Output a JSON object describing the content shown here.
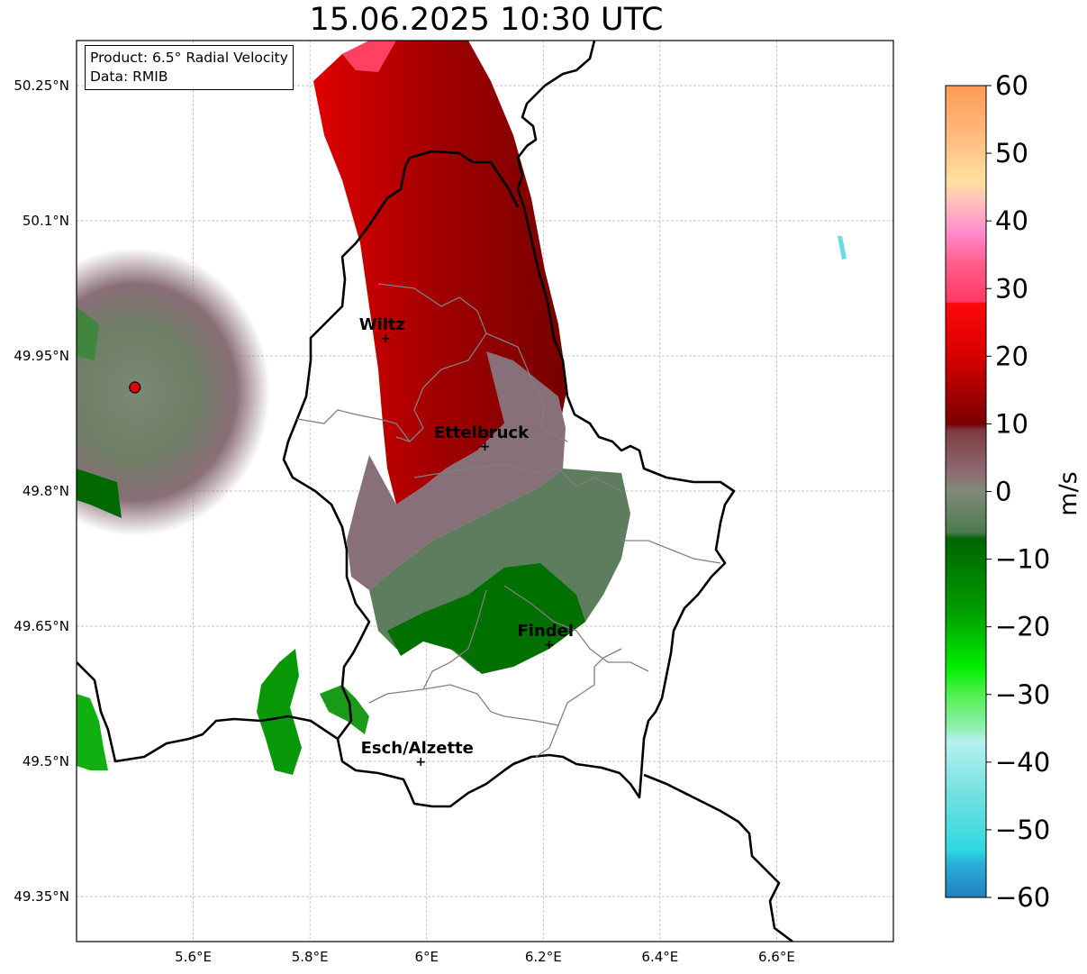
{
  "title": "15.06.2025 10:30 UTC",
  "info": {
    "product": "Product: 6.5° Radial Velocity",
    "data_source": "Data: RMIB"
  },
  "axes": {
    "lat_ticks": [
      "50.25°N",
      "50.1°N",
      "49.95°N",
      "49.8°N",
      "49.65°N",
      "49.5°N",
      "49.35°N"
    ],
    "lon_ticks": [
      "5.6°E",
      "5.8°E",
      "6°E",
      "6.2°E",
      "6.4°E",
      "6.6°E"
    ],
    "lat_values": [
      50.25,
      50.1,
      49.95,
      49.8,
      49.65,
      49.5,
      49.35
    ],
    "lon_values": [
      5.6,
      5.8,
      6.0,
      6.2,
      6.4,
      6.6
    ],
    "lat_range": [
      49.3,
      50.3
    ],
    "lon_range": [
      5.4,
      6.8
    ],
    "grid": true
  },
  "cities": [
    {
      "name": "Wiltz",
      "lon": 5.93,
      "lat": 49.97
    },
    {
      "name": "Ettelbruck",
      "lon": 6.1,
      "lat": 49.85
    },
    {
      "name": "Findel",
      "lon": 6.21,
      "lat": 49.63
    },
    {
      "name": "Esch/Alzette",
      "lon": 5.99,
      "lat": 49.5
    }
  ],
  "radar_site": {
    "lon": 5.5,
    "lat": 49.915,
    "color": "#e00000"
  },
  "colorbar": {
    "label": "m/s",
    "min": -60,
    "max": 60,
    "ticks": [
      "60",
      "50",
      "40",
      "30",
      "20",
      "10",
      "0",
      "−10",
      "−20",
      "−30",
      "−40",
      "−50",
      "−60"
    ],
    "tick_values": [
      60,
      50,
      40,
      30,
      20,
      10,
      0,
      -10,
      -20,
      -30,
      -40,
      -50,
      -60
    ],
    "stops": [
      {
        "v": 60,
        "c": "#ff9a55"
      },
      {
        "v": 55,
        "c": "#ffb070"
      },
      {
        "v": 50,
        "c": "#ffc88a"
      },
      {
        "v": 46,
        "c": "#ffe0a0"
      },
      {
        "v": 42,
        "c": "#ffb8c0"
      },
      {
        "v": 38,
        "c": "#ff88cc"
      },
      {
        "v": 34,
        "c": "#ff6090"
      },
      {
        "v": 28,
        "c": "#ff3860"
      },
      {
        "v": 27.9,
        "c": "#ff0a0a"
      },
      {
        "v": 20,
        "c": "#d80000"
      },
      {
        "v": 10,
        "c": "#7a0000"
      },
      {
        "v": 9,
        "c": "#7e3b40"
      },
      {
        "v": 3,
        "c": "#8c6a74"
      },
      {
        "v": 0,
        "c": "#7f8b78"
      },
      {
        "v": -6,
        "c": "#4d7a4d"
      },
      {
        "v": -7,
        "c": "#006400"
      },
      {
        "v": -18,
        "c": "#00a000"
      },
      {
        "v": -26,
        "c": "#00ee00"
      },
      {
        "v": -30,
        "c": "#50f050"
      },
      {
        "v": -35,
        "c": "#90f0b0"
      },
      {
        "v": -37,
        "c": "#b8f0f0"
      },
      {
        "v": -45,
        "c": "#70e0e0"
      },
      {
        "v": -53,
        "c": "#30d8e0"
      },
      {
        "v": -55,
        "c": "#28b0d8"
      },
      {
        "v": -60,
        "c": "#2080c0"
      }
    ]
  }
}
